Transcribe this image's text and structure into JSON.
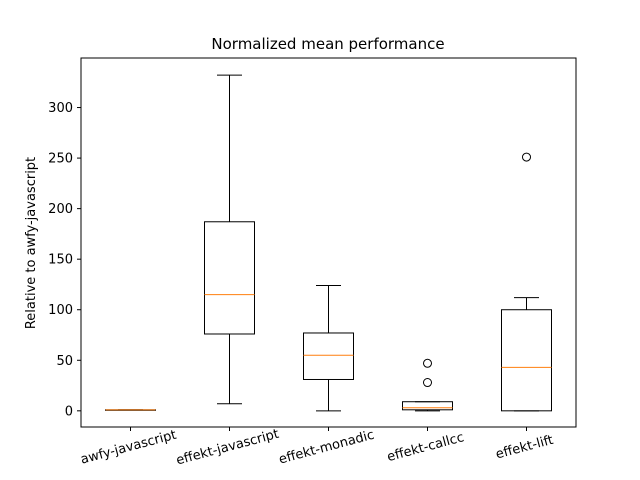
{
  "chart_data": {
    "type": "box",
    "title": "Normalized mean performance",
    "xlabel": "",
    "ylabel": "Relative to awfy-javascript",
    "ylim": [
      -16,
      349
    ],
    "yticks": [
      0,
      50,
      100,
      150,
      200,
      250,
      300
    ],
    "xtick_rotation_deg": 15,
    "grid": false,
    "colors": {
      "box": "#000000",
      "median": "#ff7f0e",
      "background": "#ffffff"
    },
    "categories": [
      "awfy-javascript",
      "effekt-javascript",
      "effekt-monadic",
      "effekt-callcc",
      "effekt-lift"
    ],
    "boxes": [
      {
        "label": "awfy-javascript",
        "whisker_low": 1,
        "q1": 1,
        "median": 1,
        "q3": 1,
        "whisker_high": 1,
        "outliers": []
      },
      {
        "label": "effekt-javascript",
        "whisker_low": 7,
        "q1": 76,
        "median": 115,
        "q3": 187,
        "whisker_high": 332,
        "outliers": []
      },
      {
        "label": "effekt-monadic",
        "whisker_low": 0,
        "q1": 31,
        "median": 55,
        "q3": 77,
        "whisker_high": 124,
        "outliers": []
      },
      {
        "label": "effekt-callcc",
        "whisker_low": 0,
        "q1": 1,
        "median": 3,
        "q3": 9,
        "whisker_high": 9,
        "outliers": [
          28,
          47
        ]
      },
      {
        "label": "effekt-lift",
        "whisker_low": 0,
        "q1": 0,
        "median": 43,
        "q3": 100,
        "whisker_high": 112,
        "outliers": [
          251
        ]
      }
    ]
  }
}
